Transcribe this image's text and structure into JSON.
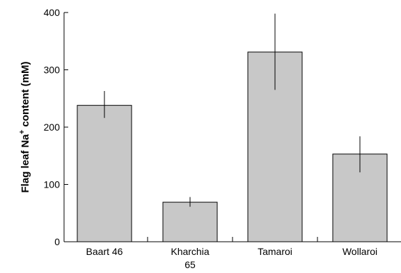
{
  "chart_data": {
    "type": "bar",
    "title": "",
    "xlabel": "",
    "ylabel": {
      "prefix": "Flag leaf Na",
      "superscript": "+",
      "suffix": " content (mM)"
    },
    "ylim": [
      0,
      400
    ],
    "yticks": [
      "0",
      "100",
      "200",
      "300",
      "400"
    ],
    "categories": [
      {
        "lines": [
          "Baart 46"
        ]
      },
      {
        "lines": [
          "Kharchia",
          "65"
        ]
      },
      {
        "lines": [
          "Tamaroi"
        ]
      },
      {
        "lines": [
          "Wollaroi"
        ]
      }
    ],
    "values": [
      238,
      69,
      331,
      153
    ],
    "error_low": [
      216,
      61,
      265,
      121
    ],
    "error_high": [
      263,
      78,
      398,
      184
    ],
    "grid": false,
    "bar_color": "#c8c8c8",
    "edge_color": "#000000"
  }
}
